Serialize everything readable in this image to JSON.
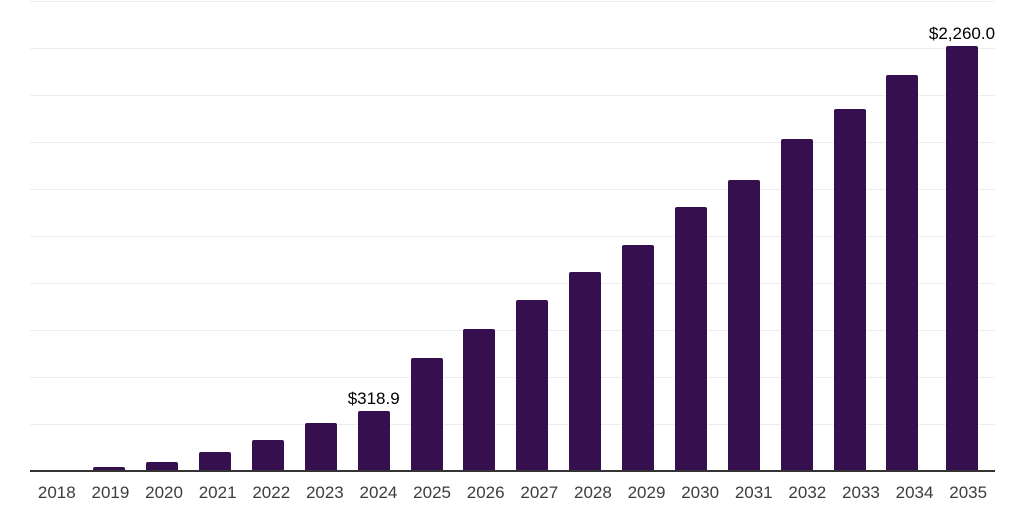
{
  "chart_data": {
    "type": "bar",
    "title": "",
    "xlabel": "",
    "ylabel": "",
    "categories": [
      "2018",
      "2019",
      "2020",
      "2021",
      "2022",
      "2023",
      "2024",
      "2025",
      "2026",
      "2027",
      "2028",
      "2029",
      "2030",
      "2031",
      "2032",
      "2033",
      "2034",
      "2035"
    ],
    "values": [
      3,
      23,
      50,
      100,
      166,
      256,
      318.9,
      600,
      756,
      910,
      1060,
      1204,
      1402,
      1546,
      1766,
      1926,
      2109,
      2260
    ],
    "data_labels": {
      "2024": "$318.9",
      "2035": "$2,260.0"
    },
    "ylim": [
      0,
      2500
    ],
    "grid_step": 250,
    "grid": "horizontal",
    "y_axis_tick_labels": "none",
    "legend_position": "none"
  },
  "colors": {
    "bar": "#36104e",
    "gridline": "#ededed",
    "axis": "#333333",
    "tick_label": "#3d3d3d",
    "value_label": "#000000",
    "background": "#ffffff"
  }
}
